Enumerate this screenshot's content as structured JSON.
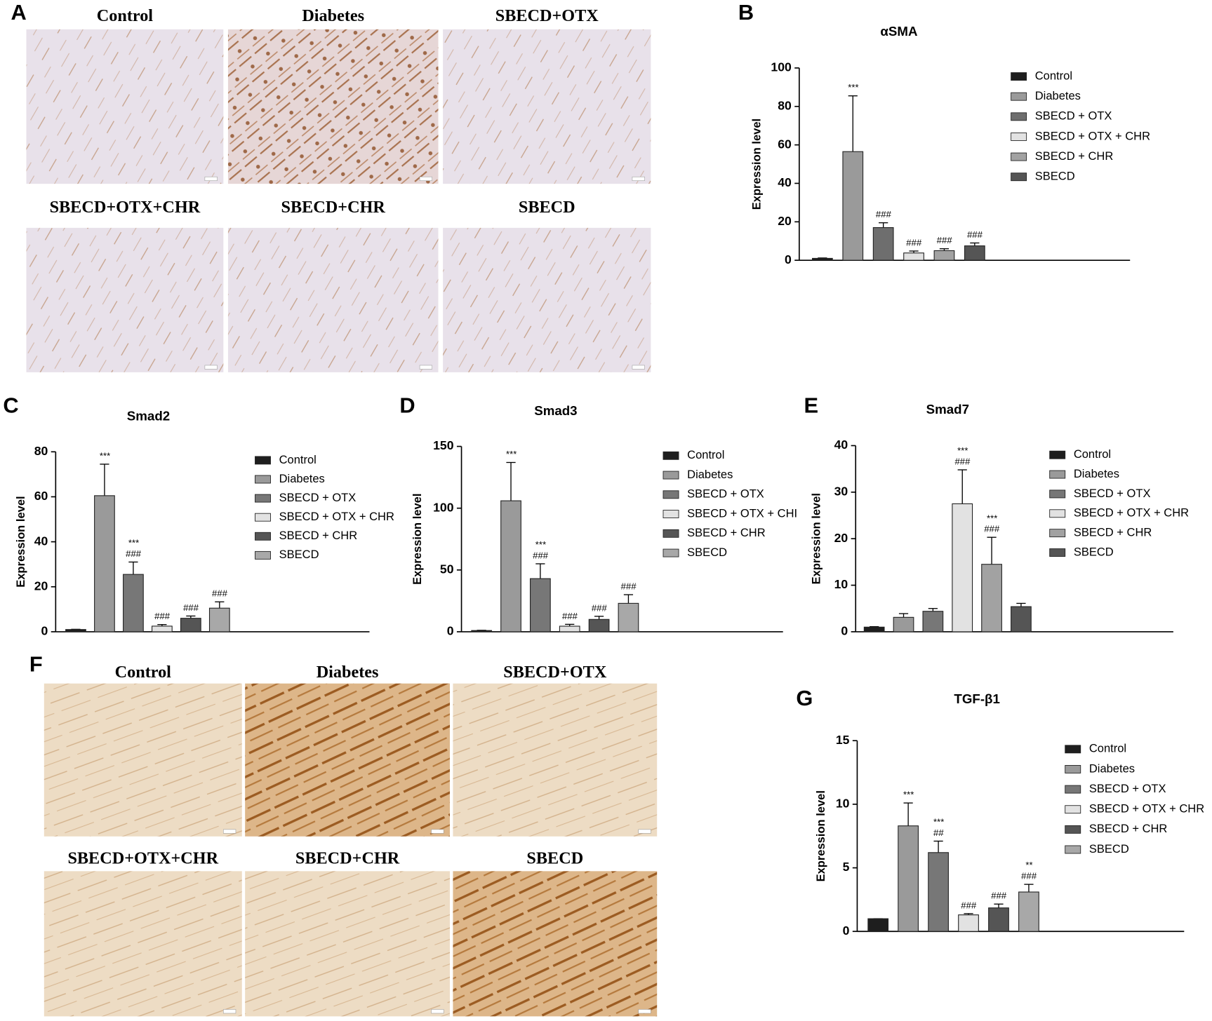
{
  "image_panels": [
    {
      "letter": "A",
      "labels": [
        "Control",
        "Diabetes",
        "SBECD+OTX",
        "SBECD+OTX+CHR",
        "SBECD+CHR",
        "SBECD"
      ]
    },
    {
      "letter": "F",
      "labels": [
        "Control",
        "Diabetes",
        "SBECD+OTX",
        "SBECD+OTX+CHR",
        "SBECD+CHR",
        "SBECD"
      ]
    }
  ],
  "chart_data": [
    {
      "letter": "B",
      "type": "bar",
      "title": "αSMA",
      "ylabel": "Expression level",
      "categories": [
        "Control",
        "Diabetes",
        "SBECD + OTX",
        "SBECD + OTX + CHR",
        "SBECD + CHR",
        "SBECD"
      ],
      "colors": [
        "#1e1e1e",
        "#9a9a9a",
        "#6e6e6e",
        "#e2e2e2",
        "#a2a2a2",
        "#555555"
      ],
      "values": [
        1,
        56.5,
        17,
        3.8,
        5,
        7.5
      ],
      "errors": [
        0.2,
        29,
        2.5,
        1,
        1,
        1.5
      ],
      "annotations": [
        [],
        [
          "***"
        ],
        [
          "###"
        ],
        [
          "###"
        ],
        [
          "###"
        ],
        [
          "###"
        ]
      ],
      "ylim": [
        0,
        100
      ],
      "yticks": [
        0,
        20,
        40,
        60,
        80,
        100
      ]
    },
    {
      "letter": "C",
      "type": "bar",
      "title": "Smad2",
      "ylabel": "Expression level",
      "categories": [
        "Control",
        "Diabetes",
        "SBECD + OTX",
        "SBECD + OTX + CHR",
        "SBECD + CHR",
        "SBECD"
      ],
      "colors": [
        "#1e1e1e",
        "#9a9a9a",
        "#777777",
        "#e2e2e2",
        "#555555",
        "#a8a8a8"
      ],
      "values": [
        1,
        60.5,
        25.5,
        2.5,
        6,
        10.5
      ],
      "errors": [
        0.1,
        14,
        5.5,
        0.7,
        1,
        2.8
      ],
      "annotations": [
        [],
        [
          "***"
        ],
        [
          "***",
          "###"
        ],
        [
          "###"
        ],
        [
          "###"
        ],
        [
          "###"
        ]
      ],
      "ylim": [
        0,
        80
      ],
      "yticks": [
        0,
        20,
        40,
        60,
        80
      ]
    },
    {
      "letter": "D",
      "type": "bar",
      "title": "Smad3",
      "ylabel": "Expression level",
      "categories": [
        "Control",
        "Diabetes",
        "SBECD + OTX",
        "SBECD + OTX + CHI",
        "SBECD + CHR",
        "SBECD"
      ],
      "colors": [
        "#1e1e1e",
        "#9a9a9a",
        "#777777",
        "#e2e2e2",
        "#555555",
        "#a8a8a8"
      ],
      "values": [
        1,
        106,
        43,
        4.5,
        10,
        23
      ],
      "errors": [
        0.2,
        31,
        12,
        1.5,
        2.5,
        7
      ],
      "annotations": [
        [],
        [
          "***"
        ],
        [
          "***",
          "###"
        ],
        [
          "###"
        ],
        [
          "###"
        ],
        [
          "###"
        ]
      ],
      "ylim": [
        0,
        150
      ],
      "yticks": [
        0,
        50,
        100,
        150
      ]
    },
    {
      "letter": "E",
      "type": "bar",
      "title": "Smad7",
      "ylabel": "Expression level",
      "categories": [
        "Control",
        "Diabetes",
        "SBECD + OTX",
        "SBECD + OTX + CHR",
        "SBECD + CHR",
        "SBECD"
      ],
      "colors": [
        "#1e1e1e",
        "#9a9a9a",
        "#777777",
        "#e2e2e2",
        "#a2a2a2",
        "#555555"
      ],
      "values": [
        1,
        3.1,
        4.4,
        27.5,
        14.5,
        5.4
      ],
      "errors": [
        0.1,
        0.8,
        0.6,
        7.3,
        5.8,
        0.7
      ],
      "annotations": [
        [],
        [],
        [],
        [
          "***",
          "###"
        ],
        [
          "***",
          "###"
        ],
        []
      ],
      "ylim": [
        0,
        40
      ],
      "yticks": [
        0,
        10,
        20,
        30,
        40
      ]
    },
    {
      "letter": "G",
      "type": "bar",
      "title": "TGF-β1",
      "ylabel": "Expression level",
      "categories": [
        "Control",
        "Diabetes",
        "SBECD + OTX",
        "SBECD + OTX + CHR",
        "SBECD + CHR",
        "SBECD"
      ],
      "colors": [
        "#1e1e1e",
        "#9a9a9a",
        "#777777",
        "#e2e2e2",
        "#555555",
        "#a8a8a8"
      ],
      "values": [
        1,
        8.3,
        6.2,
        1.3,
        1.85,
        3.1
      ],
      "errors": [
        0,
        1.8,
        0.9,
        0.1,
        0.3,
        0.6
      ],
      "annotations": [
        [],
        [
          "***"
        ],
        [
          "***",
          "##"
        ],
        [
          "###"
        ],
        [
          "###"
        ],
        [
          "**",
          "###"
        ]
      ],
      "ylim": [
        0,
        15
      ],
      "yticks": [
        0,
        5,
        10,
        15
      ]
    }
  ]
}
